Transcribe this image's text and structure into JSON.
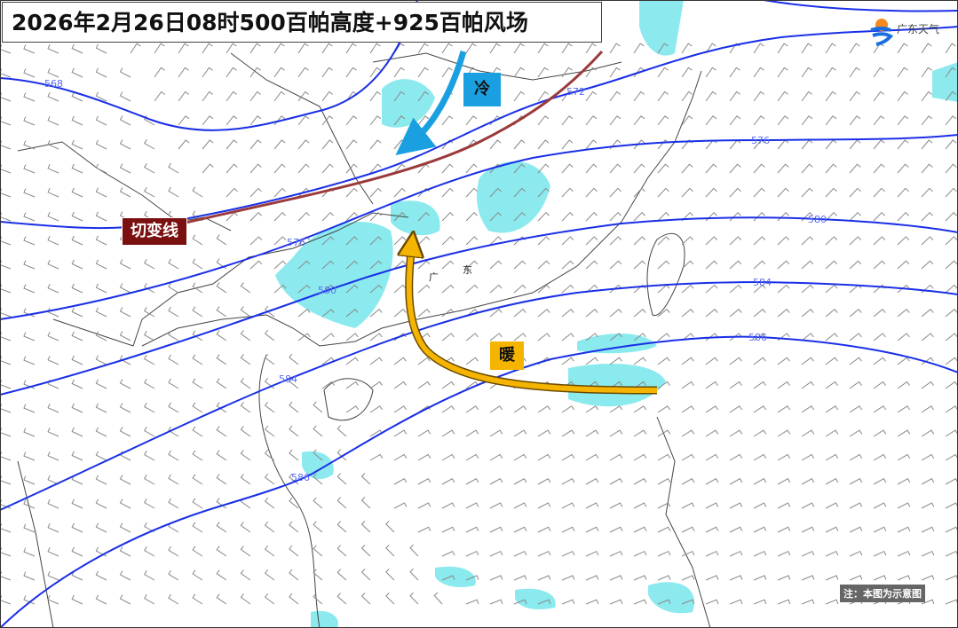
{
  "title": "2026年2月26日08时500百帕高度+925百帕风场",
  "logo": {
    "text": "广东天气",
    "icon": "sun-swirl-logo-icon"
  },
  "annotations": {
    "cold": "冷",
    "warm": "暖",
    "shear_line": "切变线",
    "province": [
      "广",
      "东"
    ]
  },
  "contour_labels": [
    "568",
    "5",
    "572",
    "576",
    "576",
    "580",
    "580",
    "584",
    "584",
    "586",
    "586"
  ],
  "note": "注：本图为示意图",
  "colors": {
    "contour": "#1a2fe6",
    "cold_arrow": "#1aa0e0",
    "warm_arrow": "#f5b400",
    "shear_line": "#9b3a3a",
    "precipitation": "#7fe8ec"
  }
}
